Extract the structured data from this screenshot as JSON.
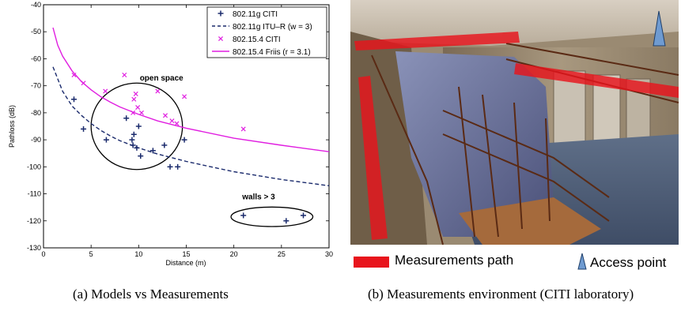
{
  "chart_data": {
    "type": "scatter",
    "xlabel": "Distance (m)",
    "ylabel": "Pathloss (dB)",
    "xlim": [
      0,
      30
    ],
    "ylim": [
      -130,
      -40
    ],
    "xticks": [
      0,
      5,
      10,
      15,
      20,
      25,
      30
    ],
    "yticks": [
      -40,
      -50,
      -60,
      -70,
      -80,
      -90,
      -100,
      -110,
      -120,
      -130
    ],
    "grid": false,
    "legend_placement": "top-right",
    "series": [
      {
        "name": "802.11g CITI",
        "kind": "markers",
        "marker": "plus",
        "color": "#1a2a6c",
        "points": [
          [
            3.2,
            -75
          ],
          [
            4.2,
            -86
          ],
          [
            6.6,
            -90
          ],
          [
            8.7,
            -82
          ],
          [
            9.3,
            -90
          ],
          [
            9.5,
            -88
          ],
          [
            9.4,
            -92
          ],
          [
            9.8,
            -93
          ],
          [
            10.0,
            -85
          ],
          [
            10.2,
            -96
          ],
          [
            11.5,
            -94
          ],
          [
            12.7,
            -92
          ],
          [
            13.3,
            -100
          ],
          [
            14.1,
            -100
          ],
          [
            14.8,
            -90
          ],
          [
            21.0,
            -118
          ],
          [
            25.5,
            -120
          ],
          [
            27.3,
            -118
          ]
        ]
      },
      {
        "name": "802.11g ITU–R (w = 3)",
        "kind": "line",
        "style": "dashed",
        "color": "#1a2a6c",
        "points": [
          [
            1,
            -63
          ],
          [
            2,
            -72
          ],
          [
            3,
            -77.5
          ],
          [
            4,
            -81
          ],
          [
            5,
            -84
          ],
          [
            6,
            -86.5
          ],
          [
            7,
            -88.5
          ],
          [
            8,
            -90.3
          ],
          [
            10,
            -93
          ],
          [
            12,
            -95.3
          ],
          [
            15,
            -98
          ],
          [
            18,
            -100.3
          ],
          [
            20,
            -101.8
          ],
          [
            25,
            -104.7
          ],
          [
            30,
            -107
          ]
        ]
      },
      {
        "name": "802.15.4 CITI",
        "kind": "markers",
        "marker": "x",
        "color": "#e01ee0",
        "points": [
          [
            3.2,
            -66
          ],
          [
            4.2,
            -69
          ],
          [
            6.5,
            -72
          ],
          [
            8.5,
            -66
          ],
          [
            9.5,
            -75
          ],
          [
            9.7,
            -73
          ],
          [
            9.4,
            -80
          ],
          [
            9.9,
            -78
          ],
          [
            10.3,
            -80
          ],
          [
            12.0,
            -72
          ],
          [
            12.8,
            -81
          ],
          [
            13.5,
            -83
          ],
          [
            14.0,
            -84
          ],
          [
            14.8,
            -74
          ],
          [
            21.0,
            -86
          ]
        ]
      },
      {
        "name": "802.15.4 Friis (r = 3.1)",
        "kind": "line",
        "style": "solid",
        "color": "#e01ee0",
        "points": [
          [
            1,
            -48.5
          ],
          [
            1.5,
            -55
          ],
          [
            2,
            -59
          ],
          [
            3,
            -64.5
          ],
          [
            4,
            -68.5
          ],
          [
            5,
            -71.5
          ],
          [
            6,
            -74
          ],
          [
            7,
            -76
          ],
          [
            8,
            -77.8
          ],
          [
            10,
            -80.6
          ],
          [
            12,
            -83
          ],
          [
            15,
            -85.7
          ],
          [
            20,
            -89.4
          ],
          [
            25,
            -92
          ],
          [
            30,
            -94.4
          ]
        ]
      }
    ],
    "annotations": [
      {
        "text": "open space",
        "x": 12.4,
        "y": -68
      },
      {
        "text": "walls > 3",
        "x": 22.6,
        "y": -112
      }
    ],
    "ellipses": [
      {
        "name": "open-space-ellipse",
        "cx": 9.8,
        "cy": -85,
        "rx": 4.8,
        "ry": 16
      },
      {
        "name": "walls-ellipse",
        "cx": 24.0,
        "cy": -118.5,
        "rx": 4.3,
        "ry": 3.6
      }
    ],
    "legend_entries": [
      "802.11g CITI",
      "802.11g ITU–R (w = 3)",
      "802.15.4 CITI",
      "802.15.4 Friis (r = 3.1)"
    ]
  },
  "captions": {
    "left": "(a)  Models vs Measurements",
    "right": "(b)  Measurements environment (CITI laboratory)"
  },
  "photo_legend": {
    "path_label": "Measurements path",
    "ap_label": "Access point",
    "path_color": "#e8141c",
    "ap_color": "#6f9bd1"
  },
  "colors": {
    "navy": "#1a2a6c",
    "magenta": "#e01ee0"
  }
}
